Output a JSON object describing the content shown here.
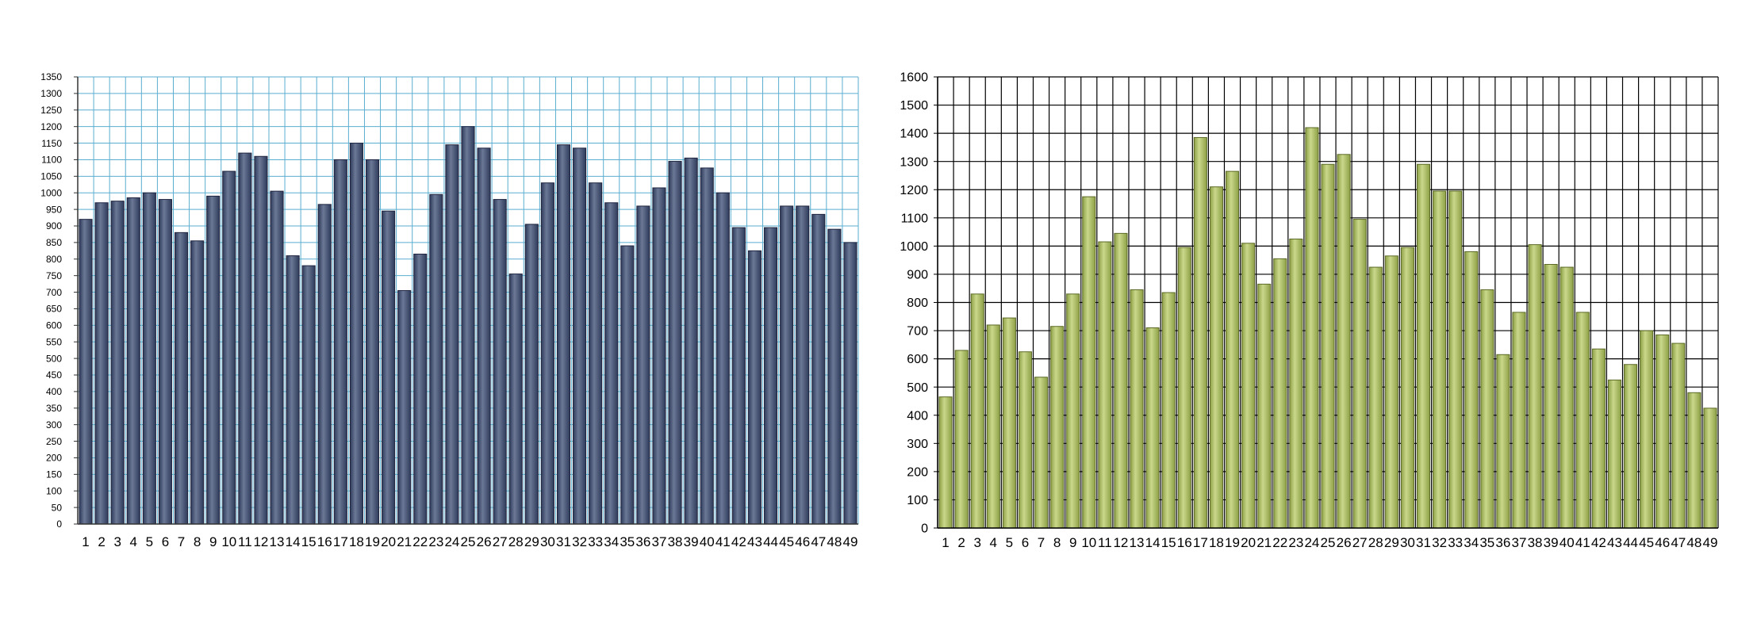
{
  "chart_data": [
    {
      "type": "bar",
      "title": "",
      "xlabel": "",
      "ylabel": "",
      "ylim": [
        0,
        1350
      ],
      "y_ticks": [
        0,
        50,
        100,
        150,
        200,
        250,
        300,
        350,
        400,
        450,
        500,
        550,
        600,
        650,
        700,
        750,
        800,
        850,
        900,
        950,
        1000,
        1050,
        1100,
        1150,
        1200,
        1250,
        1300,
        1350
      ],
      "grid": true,
      "legend": "none",
      "colors": {
        "bar": "#2f3b5a",
        "bar_highlight": "#6b7896",
        "grid": "#5aaed0",
        "axis": "#333333"
      },
      "categories": [
        "1",
        "2",
        "3",
        "4",
        "5",
        "6",
        "7",
        "8",
        "9",
        "10",
        "11",
        "12",
        "13",
        "14",
        "15",
        "16",
        "17",
        "18",
        "19",
        "20",
        "21",
        "22",
        "23",
        "24",
        "25",
        "26",
        "27",
        "28",
        "29",
        "30",
        "31",
        "32",
        "33",
        "34",
        "35",
        "36",
        "37",
        "38",
        "39",
        "40",
        "41",
        "42",
        "43",
        "44",
        "45",
        "46",
        "47",
        "48",
        "49"
      ],
      "values": [
        920,
        970,
        975,
        985,
        1000,
        980,
        880,
        855,
        990,
        1065,
        1120,
        1110,
        1005,
        810,
        780,
        965,
        1100,
        1150,
        1100,
        945,
        705,
        815,
        995,
        1145,
        1200,
        1135,
        980,
        755,
        905,
        1030,
        1145,
        1135,
        1030,
        970,
        840,
        960,
        1015,
        1095,
        1105,
        1075,
        1000,
        895,
        825,
        895,
        960,
        960,
        935,
        890,
        850
      ]
    },
    {
      "type": "bar",
      "title": "",
      "xlabel": "",
      "ylabel": "",
      "ylim": [
        0,
        1600
      ],
      "y_ticks": [
        0,
        100,
        200,
        300,
        400,
        500,
        600,
        700,
        800,
        900,
        1000,
        1100,
        1200,
        1300,
        1400,
        1500,
        1600
      ],
      "grid": true,
      "legend": "none",
      "colors": {
        "bar": "#8ea046",
        "bar_highlight": "#c9d88b",
        "grid": "#000000",
        "axis": "#000000"
      },
      "categories": [
        "1",
        "2",
        "3",
        "4",
        "5",
        "6",
        "7",
        "8",
        "9",
        "10",
        "11",
        "12",
        "13",
        "14",
        "15",
        "16",
        "17",
        "18",
        "19",
        "20",
        "21",
        "22",
        "23",
        "24",
        "25",
        "26",
        "27",
        "28",
        "29",
        "30",
        "31",
        "32",
        "33",
        "34",
        "35",
        "36",
        "37",
        "38",
        "39",
        "40",
        "41",
        "42",
        "43",
        "44",
        "45",
        "46",
        "47",
        "48",
        "49"
      ],
      "values": [
        465,
        630,
        830,
        720,
        745,
        625,
        535,
        715,
        830,
        1175,
        1015,
        1045,
        845,
        710,
        835,
        995,
        1385,
        1210,
        1265,
        1010,
        865,
        955,
        1025,
        1420,
        1290,
        1325,
        1095,
        925,
        965,
        995,
        1290,
        1195,
        1195,
        980,
        845,
        615,
        765,
        1005,
        935,
        925,
        765,
        635,
        525,
        580,
        700,
        685,
        655,
        480,
        425
      ]
    }
  ]
}
